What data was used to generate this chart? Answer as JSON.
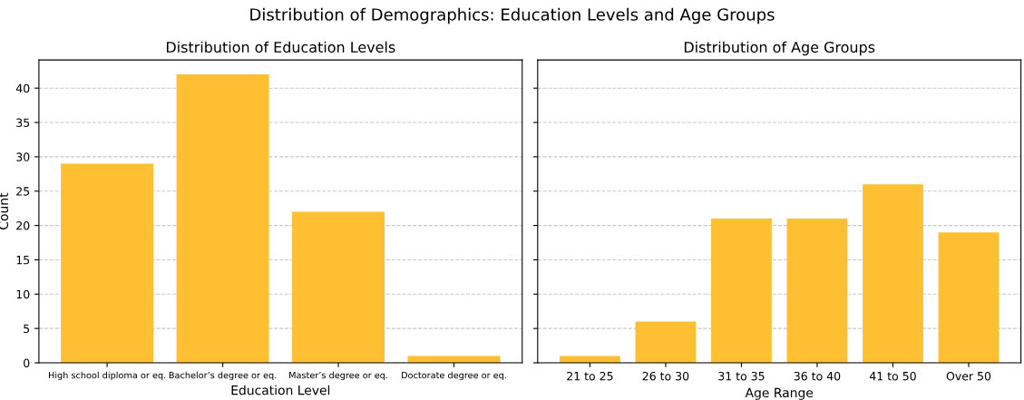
{
  "chart_data": [
    {
      "type": "bar",
      "title": "Distribution of Education Levels",
      "xlabel": "Education Level",
      "ylabel": "Count",
      "categories": [
        "High school diploma or eq.",
        "Bachelor’s degree or eq.",
        "Master’s degree or eq.",
        "Doctorate degree or eq."
      ],
      "values": [
        29,
        42,
        22,
        1
      ],
      "color": "#ffbf33",
      "annotations": [
        "Distribution of Demographics: Education Levels and Age Groups"
      ],
      "ylim": [
        0,
        44.1
      ],
      "yticks": [
        0,
        5,
        10,
        15,
        20,
        25,
        30,
        35,
        40
      ],
      "grid": "y"
    },
    {
      "type": "bar",
      "title": "Distribution of Age Groups",
      "xlabel": "Age Range",
      "categories": [
        "21 to 25",
        "26 to 30",
        "31 to 35",
        "36 to 40",
        "41 to 50",
        "Over 50"
      ],
      "values": [
        1,
        6,
        21,
        21,
        26,
        19
      ],
      "color": "#ffbf33",
      "ylim": [
        0,
        44.1
      ],
      "yticks": [
        0,
        5,
        10,
        15,
        20,
        25,
        30,
        35,
        40
      ],
      "grid": "y",
      "tick_labels": "x"
    }
  ]
}
